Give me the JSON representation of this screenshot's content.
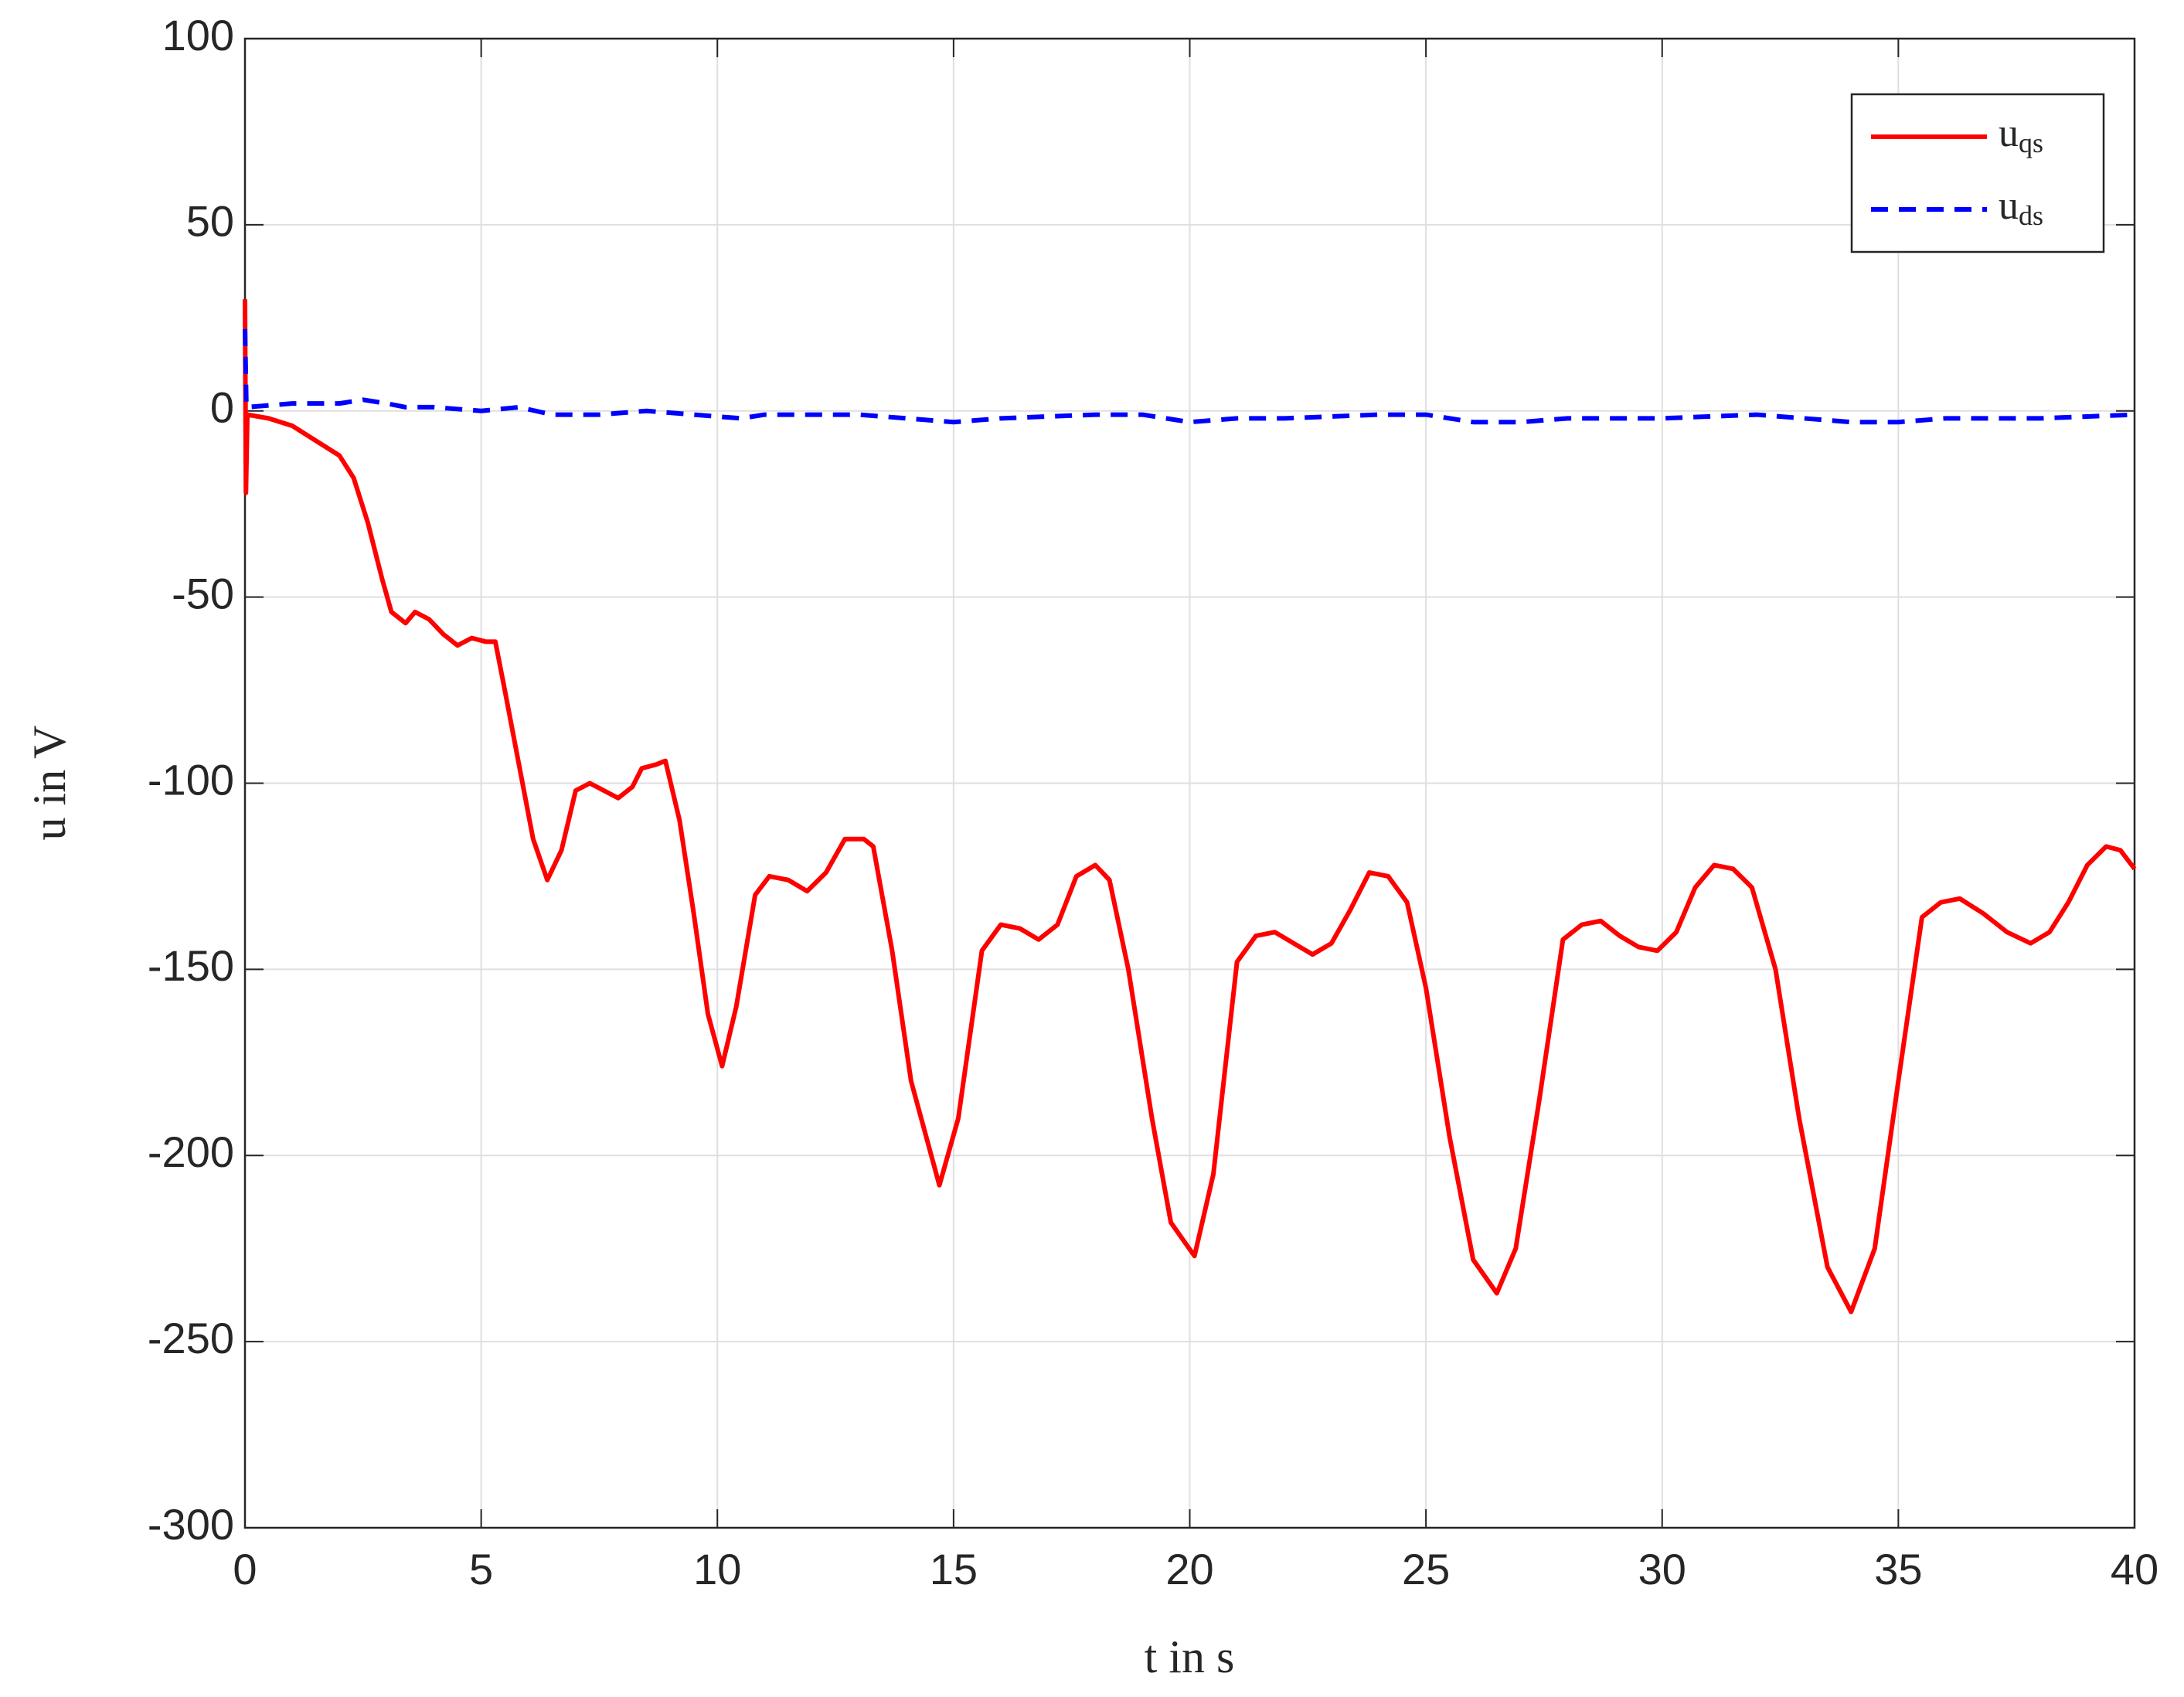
{
  "chart_data": {
    "type": "line",
    "xlabel": "t in s",
    "ylabel": "u in V",
    "xlim": [
      0,
      40
    ],
    "xticks": [
      0,
      5,
      10,
      15,
      20,
      25,
      30,
      35,
      40
    ],
    "ylim": [
      -300,
      100
    ],
    "yticks": [
      -300,
      -250,
      -200,
      -150,
      -100,
      -50,
      0,
      50,
      100
    ],
    "grid": true,
    "legend": "top-right",
    "series": [
      {
        "name": "uqs",
        "color": "#ff0000",
        "dash": "solid",
        "x": [
          0,
          0.02,
          0.05,
          0.5,
          1,
          1.5,
          2,
          2.3,
          2.6,
          2.9,
          3.1,
          3.4,
          3.6,
          3.9,
          4.2,
          4.5,
          4.8,
          5.1,
          5.3,
          5.5,
          5.8,
          6.1,
          6.4,
          6.7,
          7.0,
          7.3,
          7.6,
          7.9,
          8.2,
          8.4,
          8.7,
          8.9,
          9.2,
          9.5,
          9.8,
          10.1,
          10.4,
          10.8,
          11.1,
          11.5,
          11.9,
          12.3,
          12.7,
          13.1,
          13.3,
          13.7,
          14.1,
          14.7,
          15.1,
          15.6,
          16.0,
          16.4,
          16.8,
          17.2,
          17.6,
          18.0,
          18.3,
          18.7,
          19.2,
          19.6,
          20.1,
          20.5,
          21.0,
          21.4,
          21.8,
          22.2,
          22.6,
          23.0,
          23.4,
          23.8,
          24.2,
          24.6,
          25.0,
          25.5,
          26.0,
          26.5,
          26.9,
          27.4,
          27.9,
          28.3,
          28.7,
          29.1,
          29.5,
          29.9,
          30.3,
          30.7,
          31.1,
          31.5,
          31.9,
          32.4,
          32.9,
          33.5,
          34.0,
          34.5,
          35.0,
          35.5,
          35.9,
          36.3,
          36.8,
          37.3,
          37.8,
          38.2,
          38.6,
          39.0,
          39.4,
          39.7,
          40
        ],
        "values": [
          30,
          -22,
          -1,
          -2,
          -4,
          -8,
          -12,
          -18,
          -30,
          -45,
          -54,
          -57,
          -54,
          -56,
          -60,
          -63,
          -61,
          -62,
          -62,
          -75,
          -95,
          -115,
          -126,
          -118,
          -102,
          -100,
          -102,
          -104,
          -101,
          -96,
          -95,
          -94,
          -110,
          -135,
          -162,
          -176,
          -160,
          -130,
          -125,
          -126,
          -129,
          -124,
          -115,
          -115,
          -117,
          -145,
          -180,
          -208,
          -190,
          -145,
          -138,
          -139,
          -142,
          -138,
          -125,
          -122,
          -126,
          -150,
          -190,
          -218,
          -227,
          -205,
          -148,
          -141,
          -140,
          -143,
          -146,
          -143,
          -134,
          -124,
          -125,
          -132,
          -155,
          -195,
          -228,
          -237,
          -225,
          -185,
          -142,
          -138,
          -137,
          -141,
          -144,
          -145,
          -140,
          -128,
          -122,
          -123,
          -128,
          -150,
          -190,
          -230,
          -242,
          -225,
          -180,
          -136,
          -132,
          -131,
          -135,
          -140,
          -143,
          -140,
          -132,
          -122,
          -117,
          -118,
          -123
        ]
      },
      {
        "name": "uds",
        "color": "#0000ff",
        "dash": "dashed",
        "x": [
          0,
          0.03,
          1,
          2,
          2.5,
          3,
          3.4,
          4,
          5,
          5.8,
          6.5,
          7.5,
          8.5,
          9.5,
          10.5,
          11,
          13,
          14,
          15,
          16,
          18,
          19,
          20,
          21,
          22,
          24,
          25,
          26,
          27,
          28,
          30,
          32,
          33,
          34,
          35,
          36,
          38,
          40
        ],
        "values": [
          22,
          1,
          2,
          2,
          3,
          2,
          1,
          1,
          0,
          1,
          -1,
          -1,
          0,
          -1,
          -2,
          -1,
          -1,
          -2,
          -3,
          -2,
          -1,
          -1,
          -3,
          -2,
          -2,
          -1,
          -1,
          -3,
          -3,
          -2,
          -2,
          -1,
          -2,
          -3,
          -3,
          -2,
          -2,
          -1
        ]
      }
    ]
  }
}
